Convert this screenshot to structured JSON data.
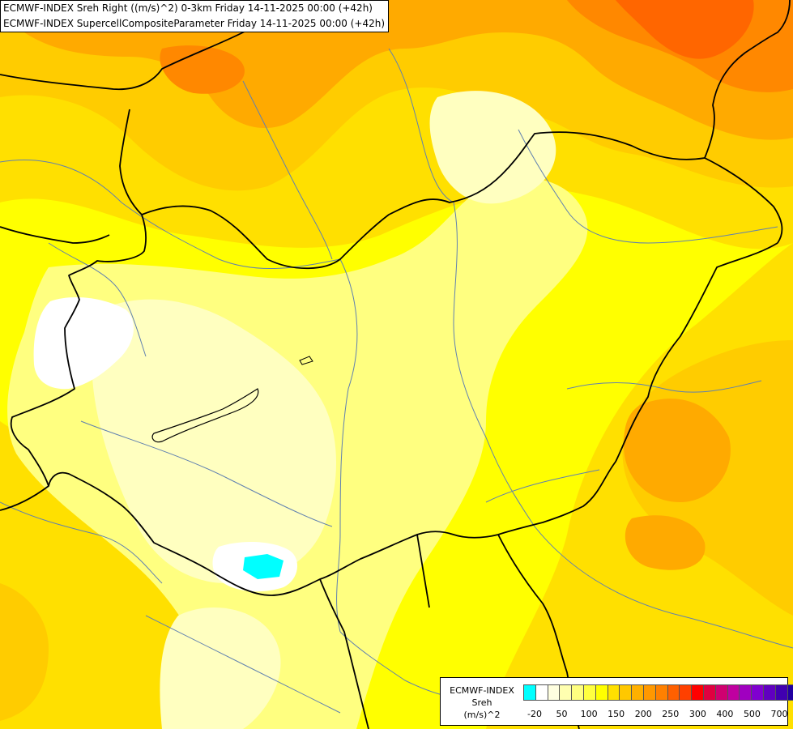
{
  "titles": {
    "line1": "ECMWF-INDEX Sreh Right ((m/s)^2) 0-3km Friday 14-11-2025 00:00 (+42h)",
    "line2": "ECMWF-INDEX SupercellCompositeParameter Friday 14-11-2025 00:00 (+42h)"
  },
  "legend": {
    "line1": "ECMWF-INDEX",
    "line2": "Sreh",
    "line3": "(m/s)^2",
    "colors": [
      "#00ffff",
      "#ffffff",
      "#ffffe0",
      "#ffffb0",
      "#ffff80",
      "#ffff40",
      "#ffff00",
      "#ffe000",
      "#ffc800",
      "#ffb000",
      "#ff9800",
      "#ff8000",
      "#ff6000",
      "#ff4000",
      "#ff0000",
      "#e00040",
      "#d00070",
      "#c000a0",
      "#a000c0",
      "#8000d0",
      "#6000c0",
      "#4000b0",
      "#2000a0",
      "#000080"
    ],
    "ticks": [
      "-20",
      "50",
      "100",
      "150",
      "200",
      "250",
      "300",
      "400",
      "500",
      "700"
    ]
  },
  "colors": {
    "pale": "#ffffc0",
    "light": "#ffff80",
    "yellow": "#ffff00",
    "gold": "#ffe000",
    "amber": "#ffcc00",
    "orange": "#ffaa00",
    "deep_orange": "#ff8800",
    "red_orange": "#ff6600",
    "min_zone": "#00ffff",
    "white_zone": "#ffffff",
    "border": "#000000",
    "river": "#6080b0"
  }
}
